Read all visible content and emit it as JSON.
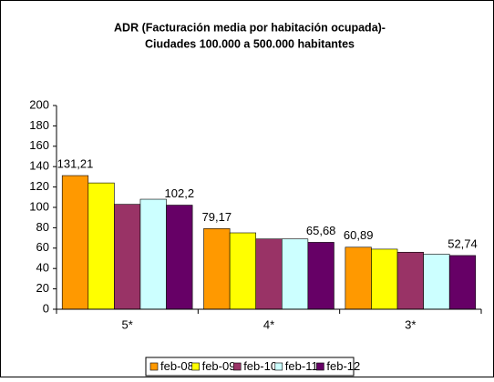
{
  "chart_data": {
    "type": "bar",
    "title": [
      "ADR (Facturación media por habitación ocupada)-",
      "Ciudades 100.000 a 500.000 habitantes"
    ],
    "categories": [
      "5*",
      "4*",
      "3*"
    ],
    "series": [
      {
        "name": "feb-08",
        "color": "#ff9900",
        "values": [
          131.21,
          79.17,
          60.89
        ],
        "value_labels": [
          "131,21",
          "79,17",
          "60,89"
        ]
      },
      {
        "name": "feb-09",
        "color": "#ffff00",
        "values": [
          124,
          75,
          59
        ]
      },
      {
        "name": "feb-10",
        "color": "#993366",
        "values": [
          103,
          69,
          56
        ]
      },
      {
        "name": "feb-11",
        "color": "#ccffff",
        "values": [
          108,
          69,
          54
        ]
      },
      {
        "name": "feb-12",
        "color": "#660066",
        "values": [
          102.2,
          65.68,
          52.74
        ],
        "value_labels": [
          "102,2",
          "65,68",
          "52,74"
        ]
      }
    ],
    "ylim": [
      0,
      200
    ],
    "yticks": [
      0,
      20,
      40,
      60,
      80,
      100,
      120,
      140,
      160,
      180,
      200
    ],
    "grid": false,
    "legend": "bottom"
  }
}
